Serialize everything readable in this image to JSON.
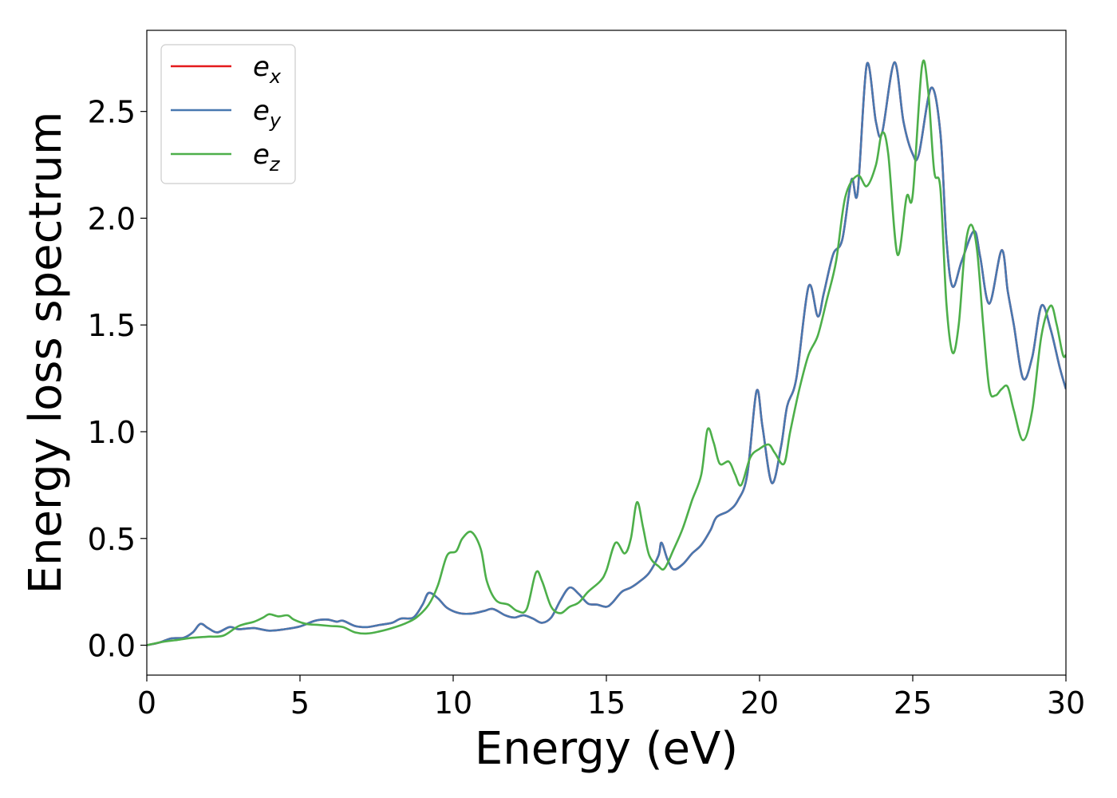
{
  "chart_data": {
    "type": "line",
    "title": "",
    "xlabel": "Energy (eV)",
    "ylabel": "Energy loss spectrum",
    "xlim": [
      0,
      30
    ],
    "ylim": [
      -0.14,
      2.88
    ],
    "xticks": [
      0,
      5,
      10,
      15,
      20,
      25,
      30
    ],
    "yticks": [
      0.0,
      0.5,
      1.0,
      1.5,
      2.0,
      2.5
    ],
    "xtick_labels": [
      "0",
      "5",
      "10",
      "15",
      "20",
      "25",
      "30"
    ],
    "ytick_labels": [
      "0.0",
      "0.5",
      "1.0",
      "1.5",
      "2.0",
      "2.5"
    ],
    "grid": false,
    "legend_position": "top-left",
    "series": [
      {
        "name": "e",
        "subscript": "x",
        "color": "#e41a1c",
        "points": [
          [
            0,
            0
          ],
          [
            0.4,
            0.012
          ],
          [
            0.8,
            0.032
          ],
          [
            1.2,
            0.035
          ],
          [
            1.5,
            0.06
          ],
          [
            1.75,
            0.1
          ],
          [
            2.0,
            0.08
          ],
          [
            2.3,
            0.06
          ],
          [
            2.7,
            0.085
          ],
          [
            3.0,
            0.075
          ],
          [
            3.5,
            0.08
          ],
          [
            4.0,
            0.068
          ],
          [
            4.5,
            0.075
          ],
          [
            5.0,
            0.088
          ],
          [
            5.5,
            0.115
          ],
          [
            5.9,
            0.12
          ],
          [
            6.2,
            0.11
          ],
          [
            6.4,
            0.115
          ],
          [
            6.8,
            0.09
          ],
          [
            7.2,
            0.085
          ],
          [
            7.6,
            0.095
          ],
          [
            8.0,
            0.105
          ],
          [
            8.3,
            0.125
          ],
          [
            8.7,
            0.13
          ],
          [
            9.0,
            0.19
          ],
          [
            9.2,
            0.245
          ],
          [
            9.5,
            0.22
          ],
          [
            9.8,
            0.175
          ],
          [
            10.2,
            0.15
          ],
          [
            10.6,
            0.148
          ],
          [
            11.0,
            0.16
          ],
          [
            11.3,
            0.17
          ],
          [
            11.7,
            0.14
          ],
          [
            12.0,
            0.13
          ],
          [
            12.3,
            0.14
          ],
          [
            12.6,
            0.125
          ],
          [
            12.9,
            0.105
          ],
          [
            13.2,
            0.13
          ],
          [
            13.5,
            0.21
          ],
          [
            13.8,
            0.27
          ],
          [
            14.1,
            0.24
          ],
          [
            14.4,
            0.195
          ],
          [
            14.7,
            0.19
          ],
          [
            15.0,
            0.18
          ],
          [
            15.2,
            0.2
          ],
          [
            15.5,
            0.25
          ],
          [
            15.8,
            0.27
          ],
          [
            16.1,
            0.3
          ],
          [
            16.4,
            0.34
          ],
          [
            16.7,
            0.42
          ],
          [
            16.8,
            0.48
          ],
          [
            17.0,
            0.4
          ],
          [
            17.2,
            0.355
          ],
          [
            17.5,
            0.38
          ],
          [
            17.8,
            0.43
          ],
          [
            18.1,
            0.47
          ],
          [
            18.4,
            0.54
          ],
          [
            18.6,
            0.6
          ],
          [
            19.0,
            0.63
          ],
          [
            19.3,
            0.68
          ],
          [
            19.6,
            0.8
          ],
          [
            19.9,
            1.19
          ],
          [
            20.1,
            1.02
          ],
          [
            20.4,
            0.76
          ],
          [
            20.7,
            0.93
          ],
          [
            20.9,
            1.12
          ],
          [
            21.2,
            1.25
          ],
          [
            21.6,
            1.68
          ],
          [
            21.9,
            1.54
          ],
          [
            22.1,
            1.65
          ],
          [
            22.4,
            1.83
          ],
          [
            22.7,
            1.9
          ],
          [
            23.0,
            2.18
          ],
          [
            23.2,
            2.12
          ],
          [
            23.5,
            2.72
          ],
          [
            23.8,
            2.45
          ],
          [
            24.0,
            2.4
          ],
          [
            24.4,
            2.73
          ],
          [
            24.7,
            2.45
          ],
          [
            25.0,
            2.3
          ],
          [
            25.2,
            2.3
          ],
          [
            25.6,
            2.61
          ],
          [
            25.9,
            2.4
          ],
          [
            26.1,
            1.9
          ],
          [
            26.3,
            1.68
          ],
          [
            26.6,
            1.8
          ],
          [
            27.0,
            1.94
          ],
          [
            27.2,
            1.82
          ],
          [
            27.5,
            1.6
          ],
          [
            27.9,
            1.85
          ],
          [
            28.1,
            1.66
          ],
          [
            28.3,
            1.5
          ],
          [
            28.6,
            1.25
          ],
          [
            28.9,
            1.35
          ],
          [
            29.2,
            1.59
          ],
          [
            29.5,
            1.48
          ],
          [
            29.8,
            1.3
          ],
          [
            30.0,
            1.2
          ]
        ]
      },
      {
        "name": "e",
        "subscript": "y",
        "color": "#4878b0",
        "points": [
          [
            0,
            0
          ],
          [
            0.4,
            0.012
          ],
          [
            0.8,
            0.032
          ],
          [
            1.2,
            0.035
          ],
          [
            1.5,
            0.06
          ],
          [
            1.75,
            0.1
          ],
          [
            2.0,
            0.08
          ],
          [
            2.3,
            0.06
          ],
          [
            2.7,
            0.085
          ],
          [
            3.0,
            0.075
          ],
          [
            3.5,
            0.08
          ],
          [
            4.0,
            0.068
          ],
          [
            4.5,
            0.075
          ],
          [
            5.0,
            0.088
          ],
          [
            5.5,
            0.115
          ],
          [
            5.9,
            0.12
          ],
          [
            6.2,
            0.11
          ],
          [
            6.4,
            0.115
          ],
          [
            6.8,
            0.09
          ],
          [
            7.2,
            0.085
          ],
          [
            7.6,
            0.095
          ],
          [
            8.0,
            0.105
          ],
          [
            8.3,
            0.125
          ],
          [
            8.7,
            0.13
          ],
          [
            9.0,
            0.19
          ],
          [
            9.2,
            0.245
          ],
          [
            9.5,
            0.22
          ],
          [
            9.8,
            0.175
          ],
          [
            10.2,
            0.15
          ],
          [
            10.6,
            0.148
          ],
          [
            11.0,
            0.16
          ],
          [
            11.3,
            0.17
          ],
          [
            11.7,
            0.14
          ],
          [
            12.0,
            0.13
          ],
          [
            12.3,
            0.14
          ],
          [
            12.6,
            0.125
          ],
          [
            12.9,
            0.105
          ],
          [
            13.2,
            0.13
          ],
          [
            13.5,
            0.21
          ],
          [
            13.8,
            0.27
          ],
          [
            14.1,
            0.24
          ],
          [
            14.4,
            0.195
          ],
          [
            14.7,
            0.19
          ],
          [
            15.0,
            0.18
          ],
          [
            15.2,
            0.2
          ],
          [
            15.5,
            0.25
          ],
          [
            15.8,
            0.27
          ],
          [
            16.1,
            0.3
          ],
          [
            16.4,
            0.34
          ],
          [
            16.7,
            0.42
          ],
          [
            16.8,
            0.48
          ],
          [
            17.0,
            0.4
          ],
          [
            17.2,
            0.355
          ],
          [
            17.5,
            0.38
          ],
          [
            17.8,
            0.43
          ],
          [
            18.1,
            0.47
          ],
          [
            18.4,
            0.54
          ],
          [
            18.6,
            0.6
          ],
          [
            19.0,
            0.63
          ],
          [
            19.3,
            0.68
          ],
          [
            19.6,
            0.8
          ],
          [
            19.9,
            1.19
          ],
          [
            20.1,
            1.02
          ],
          [
            20.4,
            0.76
          ],
          [
            20.7,
            0.93
          ],
          [
            20.9,
            1.12
          ],
          [
            21.2,
            1.25
          ],
          [
            21.6,
            1.68
          ],
          [
            21.9,
            1.54
          ],
          [
            22.1,
            1.65
          ],
          [
            22.4,
            1.83
          ],
          [
            22.7,
            1.9
          ],
          [
            23.0,
            2.18
          ],
          [
            23.2,
            2.12
          ],
          [
            23.5,
            2.72
          ],
          [
            23.8,
            2.45
          ],
          [
            24.0,
            2.4
          ],
          [
            24.4,
            2.73
          ],
          [
            24.7,
            2.45
          ],
          [
            25.0,
            2.3
          ],
          [
            25.2,
            2.3
          ],
          [
            25.6,
            2.61
          ],
          [
            25.9,
            2.4
          ],
          [
            26.1,
            1.9
          ],
          [
            26.3,
            1.68
          ],
          [
            26.6,
            1.8
          ],
          [
            27.0,
            1.94
          ],
          [
            27.2,
            1.82
          ],
          [
            27.5,
            1.6
          ],
          [
            27.9,
            1.85
          ],
          [
            28.1,
            1.66
          ],
          [
            28.3,
            1.5
          ],
          [
            28.6,
            1.25
          ],
          [
            28.9,
            1.35
          ],
          [
            29.2,
            1.59
          ],
          [
            29.5,
            1.48
          ],
          [
            29.8,
            1.3
          ],
          [
            30.0,
            1.2
          ]
        ]
      },
      {
        "name": "e",
        "subscript": "z",
        "color": "#4daf4a",
        "points": [
          [
            0,
            0
          ],
          [
            0.5,
            0.015
          ],
          [
            1.0,
            0.025
          ],
          [
            1.5,
            0.035
          ],
          [
            2.0,
            0.04
          ],
          [
            2.5,
            0.045
          ],
          [
            3.0,
            0.09
          ],
          [
            3.5,
            0.11
          ],
          [
            3.8,
            0.13
          ],
          [
            4.0,
            0.145
          ],
          [
            4.3,
            0.135
          ],
          [
            4.6,
            0.14
          ],
          [
            4.8,
            0.12
          ],
          [
            5.2,
            0.1
          ],
          [
            5.6,
            0.095
          ],
          [
            6.0,
            0.09
          ],
          [
            6.4,
            0.085
          ],
          [
            6.8,
            0.06
          ],
          [
            7.2,
            0.055
          ],
          [
            7.6,
            0.065
          ],
          [
            8.0,
            0.08
          ],
          [
            8.4,
            0.1
          ],
          [
            8.8,
            0.13
          ],
          [
            9.2,
            0.19
          ],
          [
            9.5,
            0.28
          ],
          [
            9.8,
            0.42
          ],
          [
            10.1,
            0.44
          ],
          [
            10.3,
            0.5
          ],
          [
            10.6,
            0.53
          ],
          [
            10.9,
            0.45
          ],
          [
            11.1,
            0.3
          ],
          [
            11.4,
            0.21
          ],
          [
            11.8,
            0.19
          ],
          [
            12.1,
            0.16
          ],
          [
            12.4,
            0.17
          ],
          [
            12.7,
            0.34
          ],
          [
            12.9,
            0.3
          ],
          [
            13.2,
            0.18
          ],
          [
            13.5,
            0.15
          ],
          [
            13.8,
            0.18
          ],
          [
            14.1,
            0.2
          ],
          [
            14.4,
            0.25
          ],
          [
            14.8,
            0.3
          ],
          [
            15.0,
            0.35
          ],
          [
            15.3,
            0.48
          ],
          [
            15.6,
            0.43
          ],
          [
            15.8,
            0.5
          ],
          [
            16.0,
            0.67
          ],
          [
            16.2,
            0.55
          ],
          [
            16.4,
            0.42
          ],
          [
            16.7,
            0.37
          ],
          [
            16.9,
            0.36
          ],
          [
            17.2,
            0.45
          ],
          [
            17.5,
            0.55
          ],
          [
            17.8,
            0.68
          ],
          [
            18.1,
            0.8
          ],
          [
            18.3,
            1.01
          ],
          [
            18.5,
            0.95
          ],
          [
            18.7,
            0.85
          ],
          [
            19.0,
            0.86
          ],
          [
            19.2,
            0.8
          ],
          [
            19.4,
            0.75
          ],
          [
            19.7,
            0.88
          ],
          [
            20.0,
            0.92
          ],
          [
            20.3,
            0.94
          ],
          [
            20.5,
            0.9
          ],
          [
            20.8,
            0.85
          ],
          [
            21.0,
            1.0
          ],
          [
            21.3,
            1.2
          ],
          [
            21.6,
            1.36
          ],
          [
            21.9,
            1.45
          ],
          [
            22.2,
            1.62
          ],
          [
            22.5,
            1.8
          ],
          [
            22.8,
            2.1
          ],
          [
            23.2,
            2.2
          ],
          [
            23.5,
            2.15
          ],
          [
            23.8,
            2.25
          ],
          [
            24.0,
            2.4
          ],
          [
            24.2,
            2.3
          ],
          [
            24.5,
            1.83
          ],
          [
            24.8,
            2.1
          ],
          [
            25.0,
            2.11
          ],
          [
            25.3,
            2.71
          ],
          [
            25.5,
            2.6
          ],
          [
            25.7,
            2.22
          ],
          [
            25.9,
            2.14
          ],
          [
            26.1,
            1.6
          ],
          [
            26.3,
            1.37
          ],
          [
            26.5,
            1.5
          ],
          [
            26.7,
            1.85
          ],
          [
            26.9,
            1.97
          ],
          [
            27.1,
            1.85
          ],
          [
            27.3,
            1.5
          ],
          [
            27.5,
            1.2
          ],
          [
            27.7,
            1.17
          ],
          [
            27.9,
            1.2
          ],
          [
            28.1,
            1.21
          ],
          [
            28.3,
            1.1
          ],
          [
            28.6,
            0.96
          ],
          [
            28.9,
            1.1
          ],
          [
            29.2,
            1.45
          ],
          [
            29.5,
            1.59
          ],
          [
            29.7,
            1.5
          ],
          [
            29.9,
            1.36
          ],
          [
            30.0,
            1.36
          ]
        ]
      }
    ]
  }
}
